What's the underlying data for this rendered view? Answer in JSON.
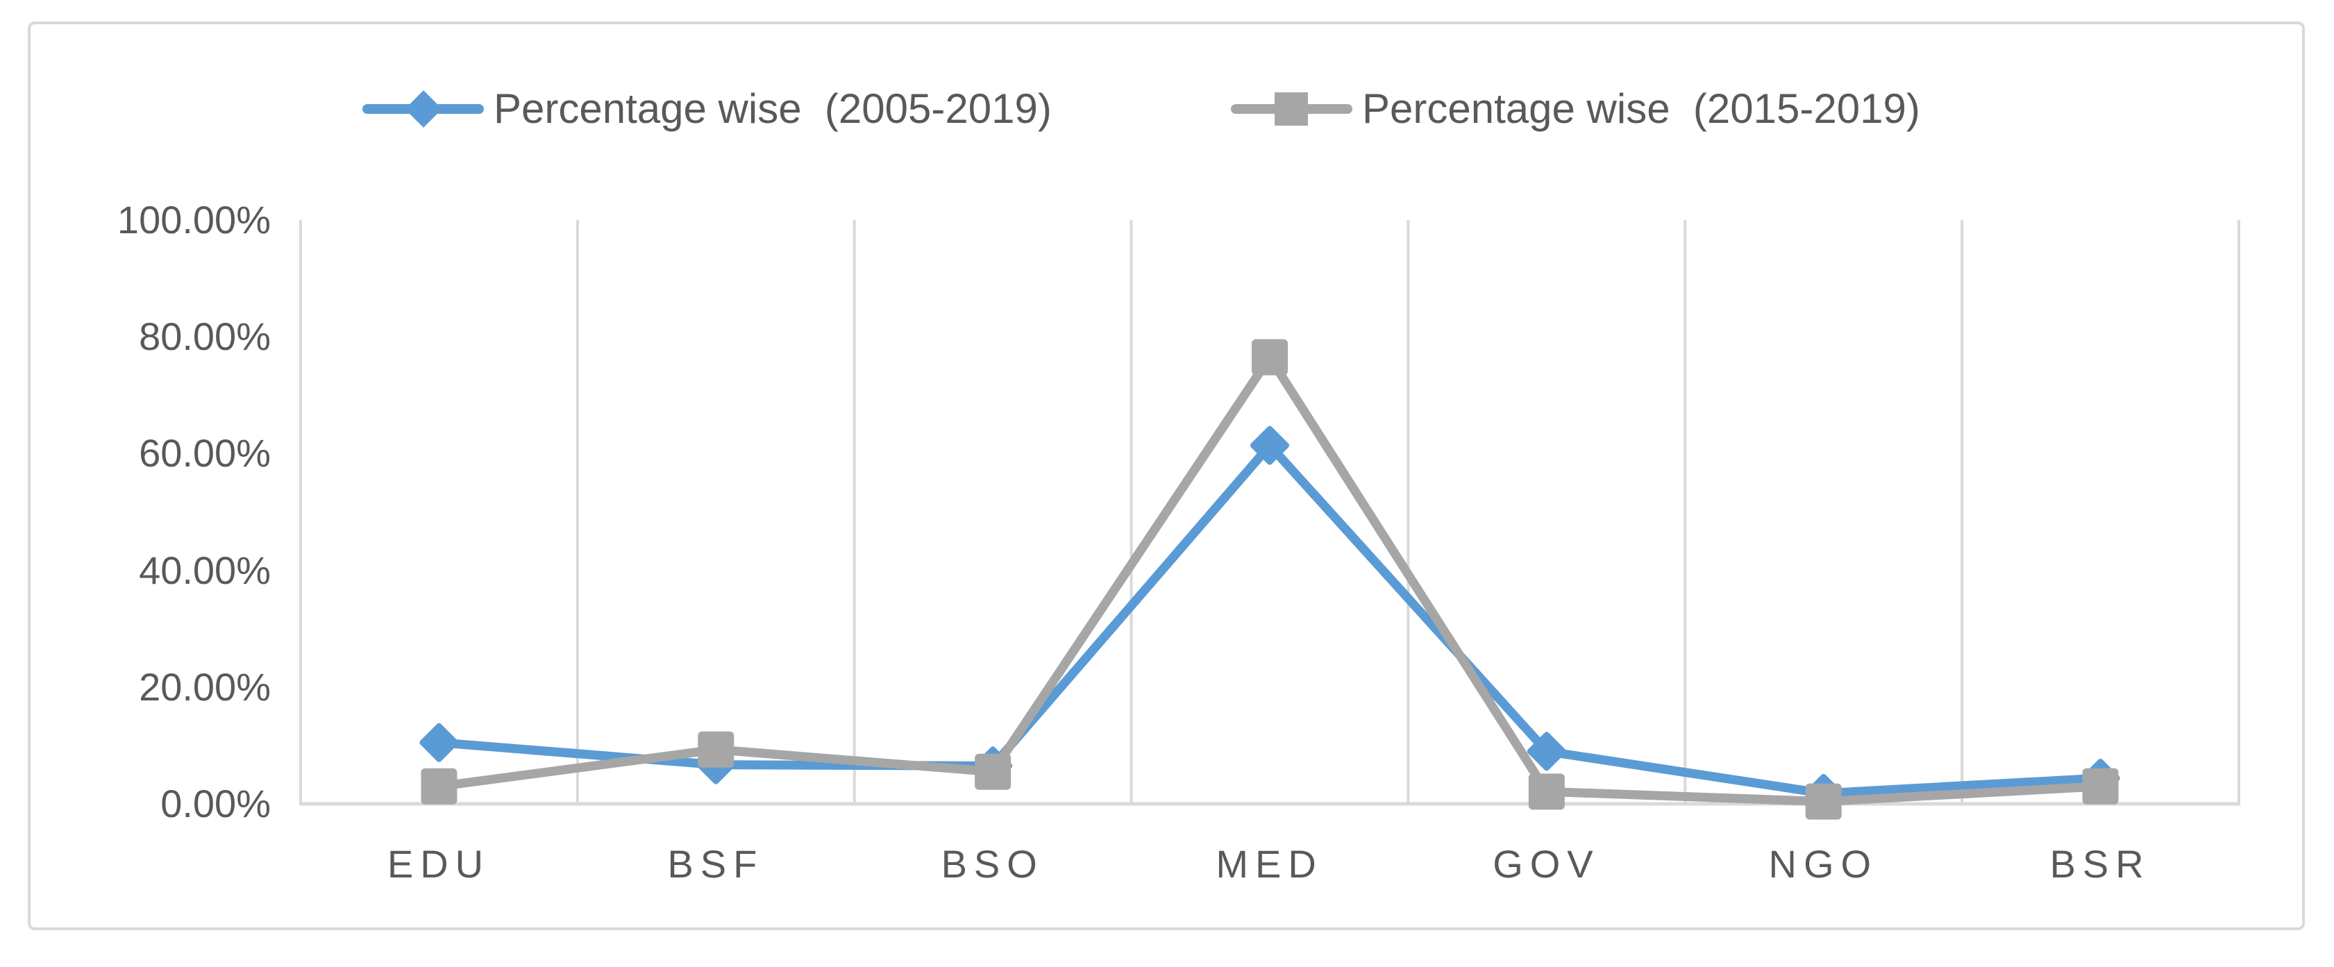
{
  "figure": {
    "background_color": "#ffffff",
    "border_color": "#d9d9d9"
  },
  "chart_data": {
    "type": "line",
    "title": "",
    "categories": [
      "EDU",
      "BSF",
      "BSO",
      "MED",
      "GOV",
      "NGO",
      "BSR"
    ],
    "series": [
      {
        "name": "Percentage wise  (2005-2019)",
        "color": "#5b9bd5",
        "marker": "diamond",
        "values": [
          10.5,
          6.7,
          6.5,
          61.4,
          9.0,
          1.8,
          4.4
        ]
      },
      {
        "name": "Percentage wise  (2015-2019)",
        "color": "#a6a6a6",
        "marker": "square",
        "values": [
          3.0,
          9.3,
          5.5,
          76.5,
          2.1,
          0.4,
          3.0
        ]
      }
    ],
    "xlabel": "",
    "ylabel": "",
    "ylim": [
      0,
      100
    ],
    "value_format": "percent",
    "y_ticks": [
      {
        "value": 0,
        "label": "0.00%"
      },
      {
        "value": 20,
        "label": "20.00%"
      },
      {
        "value": 40,
        "label": "40.00%"
      },
      {
        "value": 60,
        "label": "60.00%"
      },
      {
        "value": 80,
        "label": "80.00%"
      },
      {
        "value": 100,
        "label": "100.00%"
      }
    ],
    "grid": "vertical-only",
    "gridline_color": "#d9d9d9",
    "axis_text_color": "#595959",
    "legend_position": "top"
  }
}
